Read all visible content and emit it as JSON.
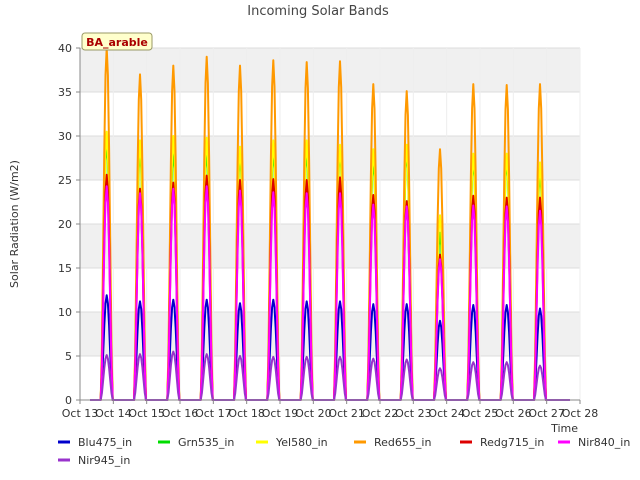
{
  "chart_data": {
    "type": "line",
    "title": "Incoming Solar Bands",
    "xlabel": "Time",
    "ylabel": "Solar Radiation (W/m2)",
    "site_label": "BA_arable",
    "ylim": [
      0,
      40
    ],
    "yticks": [
      0,
      5,
      10,
      15,
      20,
      25,
      30,
      35,
      40
    ],
    "x_categories": [
      "Oct 13",
      "Oct 14",
      "Oct 15",
      "Oct 16",
      "Oct 17",
      "Oct 18",
      "Oct 19",
      "Oct 20",
      "Oct 21",
      "Oct 22",
      "Oct 23",
      "Oct 24",
      "Oct 25",
      "Oct 26",
      "Oct 27",
      "Oct 28"
    ],
    "xlim": [
      "Oct 13",
      "Oct 28"
    ],
    "data_span": [
      "Oct 13",
      "Oct 27"
    ],
    "grid": true,
    "legend_position": "bottom",
    "peak_times": [
      "Oct 13",
      "Oct 14",
      "Oct 15",
      "Oct 16",
      "Oct 17",
      "Oct 18",
      "Oct 19",
      "Oct 20",
      "Oct 21",
      "Oct 22",
      "Oct 23",
      "Oct 24",
      "Oct 25",
      "Oct 26"
    ],
    "series": [
      {
        "name": "Blu475_in",
        "color": "#0000cc",
        "peaks": [
          11.9,
          11.2,
          11.4,
          11.4,
          11.0,
          11.4,
          11.2,
          11.2,
          10.9,
          10.9,
          9.0,
          10.8,
          10.8,
          10.4
        ]
      },
      {
        "name": "Grn535_in",
        "color": "#00dd00",
        "peaks": [
          29.5,
          28.5,
          28.5,
          28.5,
          28.0,
          28.5,
          28.5,
          28.5,
          27.5,
          28.5,
          19.0,
          27.5,
          27.5,
          26.0
        ]
      },
      {
        "name": "Yel580_in",
        "color": "#ffff00",
        "peaks": [
          30.5,
          29.5,
          30.0,
          29.8,
          28.8,
          29.5,
          29.5,
          29.0,
          28.5,
          29.0,
          21.0,
          28.0,
          28.0,
          27.0
        ]
      },
      {
        "name": "Red655_in",
        "color": "#ff9900",
        "peaks": [
          40.0,
          37.0,
          38.0,
          39.0,
          38.0,
          38.6,
          38.4,
          38.5,
          35.9,
          35.1,
          28.5,
          35.9,
          35.8,
          35.9
        ]
      },
      {
        "name": "Redg715_in",
        "color": "#dd0000",
        "peaks": [
          25.6,
          24.0,
          24.7,
          25.5,
          25.0,
          25.1,
          25.0,
          25.3,
          23.3,
          22.6,
          16.5,
          23.2,
          23.0,
          23.0
        ]
      },
      {
        "name": "Nir840_in",
        "color": "#ff00ff",
        "peaks": [
          24.3,
          23.5,
          24.0,
          24.3,
          23.8,
          23.6,
          23.5,
          23.5,
          22.2,
          22.0,
          16.0,
          22.1,
          22.0,
          21.5
        ]
      },
      {
        "name": "Nir945_in",
        "color": "#9933cc",
        "peaks": [
          5.1,
          5.2,
          5.5,
          5.2,
          5.0,
          4.9,
          4.9,
          4.9,
          4.7,
          4.6,
          3.6,
          4.3,
          4.3,
          3.9
        ]
      }
    ]
  }
}
